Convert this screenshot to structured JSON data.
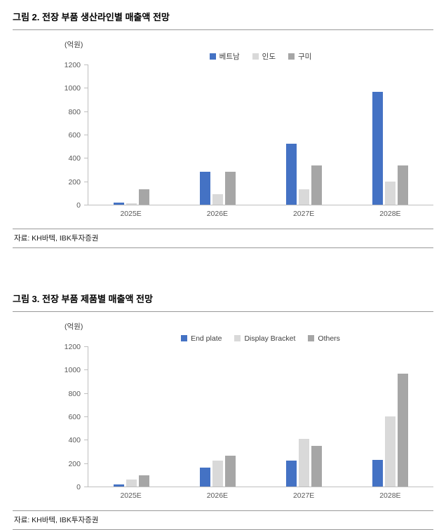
{
  "figures": [
    {
      "title": "그림 2. 전장 부품 생산라인별 매출액 전망",
      "source": "자료: KH바텍, IBK투자증권"
    },
    {
      "title": "그림 3. 전장 부품 제품별 매출액 전망",
      "source": "자료: KH바텍, IBK투자증권"
    }
  ],
  "chart_data": [
    {
      "type": "bar",
      "title": "그림 2. 전장 부품 생산라인별 매출액 전망",
      "unit": "(억원)",
      "categories": [
        "2025E",
        "2026E",
        "2027E",
        "2028E"
      ],
      "series": [
        {
          "name": "베트남",
          "color": "#4472C4",
          "values": [
            20,
            280,
            520,
            965
          ]
        },
        {
          "name": "인도",
          "color": "#D9D9D9",
          "values": [
            10,
            90,
            130,
            200
          ]
        },
        {
          "name": "구미",
          "color": "#A6A6A6",
          "values": [
            130,
            285,
            335,
            335
          ]
        }
      ],
      "ylim": [
        0,
        1200
      ],
      "ytick_step": 200,
      "grid": false,
      "legend_position": "top-center"
    },
    {
      "type": "bar",
      "title": "그림 3. 전장 부품 제품별 매출액 전망",
      "unit": "(억원)",
      "categories": [
        "2025E",
        "2026E",
        "2027E",
        "2028E"
      ],
      "series": [
        {
          "name": "End plate",
          "color": "#4472C4",
          "values": [
            20,
            165,
            225,
            230
          ]
        },
        {
          "name": "Display Bracket",
          "color": "#D9D9D9",
          "values": [
            60,
            220,
            410,
            600
          ]
        },
        {
          "name": "Others",
          "color": "#A6A6A6",
          "values": [
            95,
            265,
            350,
            965
          ]
        }
      ],
      "ylim": [
        0,
        1200
      ],
      "ytick_step": 200,
      "grid": false,
      "legend_position": "top-center"
    }
  ]
}
